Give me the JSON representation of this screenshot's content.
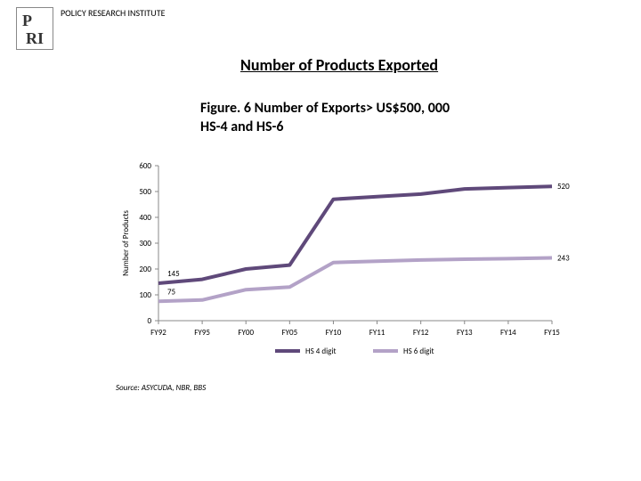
{
  "header": {
    "institute": "POLICY RESEARCH INSTITUTE",
    "logo_text_top": "P",
    "logo_text_bottom": "RI"
  },
  "main_title": "Number of Products Exported",
  "figure_title_line1": "Figure. 6 Number of Exports> US$500, 000",
  "figure_title_line2": "HS-4 and HS-6",
  "chart": {
    "type": "line",
    "ylabel": "Number of Products",
    "ylim": [
      0,
      600
    ],
    "ytick_step": 100,
    "yticks": [
      "0",
      "100",
      "200",
      "300",
      "400",
      "500",
      "600"
    ],
    "categories": [
      "FY92",
      "FY95",
      "FY00",
      "FY05",
      "FY10",
      "FY11",
      "FY12",
      "FY13",
      "FY14",
      "FY15"
    ],
    "series": [
      {
        "name": "HS 4 digit",
        "color": "#5f497a",
        "stroke_width": 4,
        "values": [
          145,
          160,
          200,
          215,
          470,
          480,
          490,
          510,
          515,
          520
        ],
        "label_start": "145",
        "label_end": "520"
      },
      {
        "name": "HS 6 digit",
        "color": "#b3a2c7",
        "stroke_width": 4,
        "values": [
          75,
          80,
          120,
          130,
          225,
          230,
          235,
          238,
          240,
          243
        ],
        "label_start": "75",
        "label_end": "243"
      }
    ],
    "background_color": "#ffffff",
    "axis_color": "#888888",
    "tick_font_size": 9,
    "label_font_size": 9
  },
  "legend": {
    "items": [
      "HS 4 digit",
      "HS 6 digit"
    ]
  },
  "source": "Source: ASYCUDA, NBR, BBS"
}
